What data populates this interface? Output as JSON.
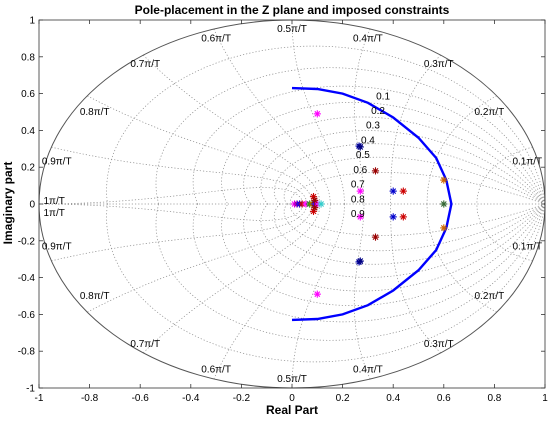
{
  "chart_data": {
    "type": "scatter",
    "title": "Pole-placement in the Z plane and imposed constraints",
    "xlabel": "Real Part",
    "ylabel": "Imaginary part",
    "xlim": [
      -1,
      1
    ],
    "ylim": [
      -1,
      1
    ],
    "xticks": [
      "-1",
      "-0.8",
      "-0.6",
      "-0.4",
      "-0.2",
      "0",
      "0.2",
      "0.4",
      "0.6",
      "0.8",
      "1"
    ],
    "yticks": [
      "1",
      "0.8",
      "0.6",
      "0.4",
      "0.2",
      "0",
      "-0.2",
      "-0.4",
      "-0.6",
      "-0.8",
      "-1"
    ],
    "grid": "zgrid",
    "damping_labels": [
      "0.1",
      "0.2",
      "0.3",
      "0.4",
      "0.5",
      "0.6",
      "0.7",
      "0.8",
      "0.9"
    ],
    "damping_values": [
      0.1,
      0.2,
      0.3,
      0.4,
      0.5,
      0.6,
      0.7,
      0.8,
      0.9
    ],
    "frequency_labels": [
      "0.1π/T",
      "0.2π/T",
      "0.3π/T",
      "0.4π/T",
      "0.5π/T",
      "0.6π/T",
      "0.7π/T",
      "0.8π/T",
      "0.9π/T",
      "1π/T"
    ],
    "frequency_values": [
      0.1,
      0.2,
      0.3,
      0.4,
      0.5,
      0.6,
      0.7,
      0.8,
      0.9,
      1.0
    ],
    "constraint_boundary": {
      "color": "#0000ff",
      "points": [
        [
          0,
          0.63
        ],
        [
          0.1,
          0.625
        ],
        [
          0.2,
          0.6
        ],
        [
          0.3,
          0.55
        ],
        [
          0.4,
          0.47
        ],
        [
          0.5,
          0.36
        ],
        [
          0.57,
          0.25
        ],
        [
          0.61,
          0.13
        ],
        [
          0.63,
          0
        ],
        [
          0.61,
          -0.13
        ],
        [
          0.57,
          -0.25
        ],
        [
          0.5,
          -0.36
        ],
        [
          0.4,
          -0.47
        ],
        [
          0.3,
          -0.55
        ],
        [
          0.2,
          -0.6
        ],
        [
          0.1,
          -0.625
        ],
        [
          0,
          -0.63
        ]
      ]
    },
    "poles": [
      {
        "x": 0.1,
        "y": 0.49,
        "color": "#ff00ff"
      },
      {
        "x": 0.1,
        "y": -0.49,
        "color": "#ff00ff"
      },
      {
        "x": 0.265,
        "y": 0.315,
        "color": "#0000aa"
      },
      {
        "x": 0.265,
        "y": -0.315,
        "color": "#0000aa"
      },
      {
        "x": 0.27,
        "y": 0.31,
        "color": "#000080"
      },
      {
        "x": 0.27,
        "y": -0.31,
        "color": "#000080"
      },
      {
        "x": 0.27,
        "y": 0.07,
        "color": "#ff00ff"
      },
      {
        "x": 0.27,
        "y": -0.07,
        "color": "#ff00ff"
      },
      {
        "x": 0.33,
        "y": 0.18,
        "color": "#990000"
      },
      {
        "x": 0.33,
        "y": -0.18,
        "color": "#990000"
      },
      {
        "x": 0.4,
        "y": 0.07,
        "color": "#0000cc"
      },
      {
        "x": 0.4,
        "y": -0.07,
        "color": "#0000cc"
      },
      {
        "x": 0.44,
        "y": 0.07,
        "color": "#cc0000"
      },
      {
        "x": 0.44,
        "y": -0.07,
        "color": "#cc0000"
      },
      {
        "x": 0.6,
        "y": 0.13,
        "color": "#cc6600"
      },
      {
        "x": 0.6,
        "y": -0.13,
        "color": "#cc6600"
      },
      {
        "x": 0.6,
        "y": 0.0,
        "color": "#336633"
      },
      {
        "x": 0.01,
        "y": 0.0,
        "color": "#ff00ff"
      },
      {
        "x": 0.02,
        "y": 0.0,
        "color": "#990099"
      },
      {
        "x": 0.03,
        "y": 0.0,
        "color": "#0000ff"
      },
      {
        "x": 0.04,
        "y": 0.0,
        "color": "#cc0000"
      },
      {
        "x": 0.055,
        "y": 0.0,
        "color": "#ff00ff"
      },
      {
        "x": 0.07,
        "y": 0.0,
        "color": "#009900"
      },
      {
        "x": 0.08,
        "y": 0.0,
        "color": "#cc6600"
      },
      {
        "x": 0.09,
        "y": 0.0,
        "color": "#0000ff"
      },
      {
        "x": 0.1,
        "y": 0.0,
        "color": "#ff00ff"
      },
      {
        "x": 0.115,
        "y": 0.0,
        "color": "#33cccc"
      },
      {
        "x": 0.085,
        "y": 0.04,
        "color": "#cc0000"
      },
      {
        "x": 0.085,
        "y": -0.04,
        "color": "#cc0000"
      },
      {
        "x": 0.09,
        "y": 0.02,
        "color": "#990000"
      },
      {
        "x": 0.09,
        "y": -0.02,
        "color": "#990000"
      }
    ]
  }
}
